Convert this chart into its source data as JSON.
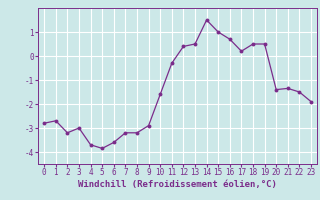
{
  "x": [
    0,
    1,
    2,
    3,
    4,
    5,
    6,
    7,
    8,
    9,
    10,
    11,
    12,
    13,
    14,
    15,
    16,
    17,
    18,
    19,
    20,
    21,
    22,
    23
  ],
  "y": [
    -2.8,
    -2.7,
    -3.2,
    -3.0,
    -3.7,
    -3.85,
    -3.6,
    -3.2,
    -3.2,
    -2.9,
    -1.6,
    -0.3,
    0.4,
    0.5,
    1.5,
    1.0,
    0.7,
    0.2,
    0.5,
    0.5,
    -1.4,
    -1.35,
    -1.5,
    -1.9
  ],
  "line_color": "#7b2d8b",
  "marker": "o",
  "marker_size": 1.8,
  "linewidth": 0.9,
  "xlabel": "Windchill (Refroidissement éolien,°C)",
  "xlim": [
    -0.5,
    23.5
  ],
  "ylim": [
    -4.5,
    2.0
  ],
  "yticks": [
    -4,
    -3,
    -2,
    -1,
    0,
    1
  ],
  "xticks": [
    0,
    1,
    2,
    3,
    4,
    5,
    6,
    7,
    8,
    9,
    10,
    11,
    12,
    13,
    14,
    15,
    16,
    17,
    18,
    19,
    20,
    21,
    22,
    23
  ],
  "bg_color": "#cce8e8",
  "grid_color": "#ffffff",
  "xlabel_fontsize": 6.5,
  "tick_fontsize": 5.5,
  "label_color": "#7b2d8b",
  "spine_color": "#7b2d8b"
}
